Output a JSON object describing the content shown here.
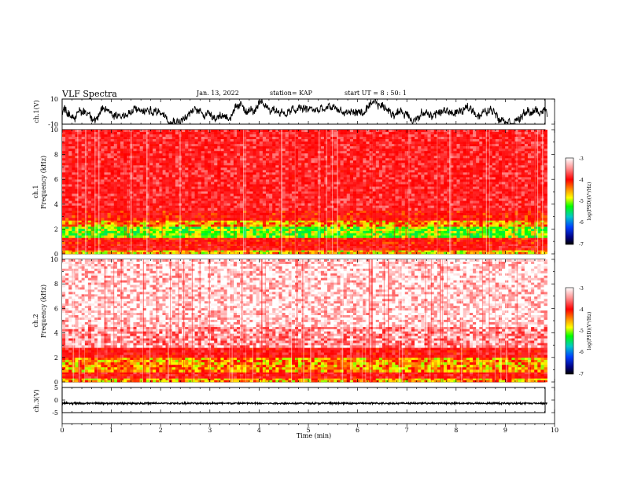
{
  "header": {
    "title": "VLF Spectra",
    "date": "Jan. 13, 2022",
    "station": "station= KAP",
    "start": "start UT =  8 : 50: 1"
  },
  "colorbar": {
    "label": "log(PSD)(V²/Hz)",
    "ticks": [
      "-3",
      "-4",
      "-5",
      "-6",
      "-7"
    ],
    "colors": [
      "#ffffff",
      "#ff0000",
      "#ffa500",
      "#ffff00",
      "#00ff00",
      "#00c8c8",
      "#0040ff",
      "#000080",
      "#000000"
    ]
  },
  "chart_data": [
    {
      "type": "line",
      "name": "ch1-waveform",
      "ylabel": "ch.1(V)",
      "yticks": [
        "10",
        "-10"
      ],
      "ylim": [
        -10,
        10
      ],
      "xlim": [
        0,
        10
      ],
      "description_values": {
        "mean": 0,
        "amplitude": 5
      }
    },
    {
      "type": "heatmap",
      "name": "ch1-spectrogram",
      "ylabel_line1": "ch.1",
      "ylabel_line2": "Frequency (kHz)",
      "yticks": [
        "0",
        "2",
        "4",
        "6",
        "8",
        "10"
      ],
      "ylim": [
        0,
        10
      ],
      "xlim": [
        0,
        9.85
      ],
      "clim": [
        -7,
        -3
      ],
      "bands": [
        {
          "fmin": 0.0,
          "fmax": 0.3,
          "level": -4.4
        },
        {
          "fmin": 0.3,
          "fmax": 0.8,
          "level": -3.8
        },
        {
          "fmin": 0.8,
          "fmax": 1.3,
          "level": -3.9
        },
        {
          "fmin": 1.3,
          "fmax": 2.2,
          "level": -4.7
        },
        {
          "fmin": 2.2,
          "fmax": 2.7,
          "level": -4.3
        },
        {
          "fmin": 2.7,
          "fmax": 3.5,
          "level": -3.9
        },
        {
          "fmin": 3.5,
          "fmax": 10.0,
          "level": -3.7
        }
      ]
    },
    {
      "type": "heatmap",
      "name": "ch2-spectrogram",
      "ylabel_line1": "ch.2",
      "ylabel_line2": "Frequency (kHz)",
      "yticks": [
        "0",
        "2",
        "4",
        "6",
        "8",
        "10"
      ],
      "ylim": [
        0,
        10
      ],
      "xlim": [
        0,
        9.85
      ],
      "clim": [
        -7,
        -3
      ],
      "bands": [
        {
          "fmin": 0.0,
          "fmax": 0.3,
          "level": -4.3
        },
        {
          "fmin": 0.3,
          "fmax": 0.8,
          "level": -3.8
        },
        {
          "fmin": 0.8,
          "fmax": 2.0,
          "level": -4.3
        },
        {
          "fmin": 2.0,
          "fmax": 2.8,
          "level": -3.8
        },
        {
          "fmin": 2.8,
          "fmax": 4.5,
          "level": -3.3
        },
        {
          "fmin": 4.5,
          "fmax": 10.0,
          "level": -3.1
        }
      ]
    },
    {
      "type": "line",
      "name": "ch3-waveform",
      "ylabel": "ch.3(V)",
      "yticks": [
        "5",
        "0",
        "-5"
      ],
      "ylim": [
        -5,
        5
      ],
      "xlim": [
        0,
        10
      ],
      "xlabel": "Time (min)",
      "xticks": [
        "0",
        "1",
        "2",
        "3",
        "4",
        "5",
        "6",
        "7",
        "8",
        "9",
        "10"
      ],
      "description_values": {
        "mean": -1.3,
        "amplitude": 0.5
      }
    }
  ]
}
